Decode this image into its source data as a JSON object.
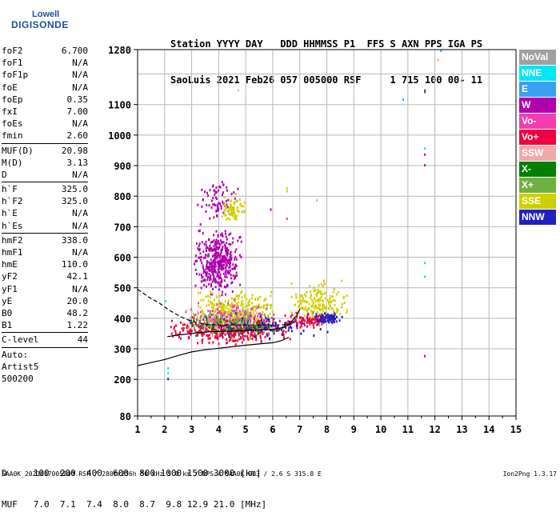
{
  "logo": {
    "line1": "Lowell",
    "line2": "DIGISONDE"
  },
  "header": {
    "row1": "Station YYYY DAY   DDD HHMMSS P1  FFS S AXN PPS IGA PS",
    "row2": "SaoLuis 2021 Feb26 057 005000 RSF     1 715 100 00- 11"
  },
  "params": {
    "group1": [
      {
        "name": "foF2",
        "value": "6.700"
      },
      {
        "name": "foF1",
        "value": "N/A"
      },
      {
        "name": "foF1p",
        "value": "N/A"
      },
      {
        "name": "foE",
        "value": "N/A"
      },
      {
        "name": "foEp",
        "value": "0.35"
      },
      {
        "name": "fxI",
        "value": "7.00"
      },
      {
        "name": "foEs",
        "value": "N/A"
      },
      {
        "name": "fmin",
        "value": "2.60"
      }
    ],
    "group2": [
      {
        "name": "MUF(D)",
        "value": "20.98"
      },
      {
        "name": "M(D)",
        "value": "3.13"
      },
      {
        "name": "D",
        "value": "N/A"
      }
    ],
    "group3": [
      {
        "name": "h`F",
        "value": "325.0"
      },
      {
        "name": "h`F2",
        "value": "325.0"
      },
      {
        "name": "h`E",
        "value": "N/A"
      },
      {
        "name": "h`Es",
        "value": "N/A"
      }
    ],
    "group4": [
      {
        "name": "hmF2",
        "value": "338.0"
      },
      {
        "name": "hmF1",
        "value": "N/A"
      },
      {
        "name": "hmE",
        "value": "110.0"
      },
      {
        "name": "yF2",
        "value": "42.1"
      },
      {
        "name": "yF1",
        "value": "N/A"
      },
      {
        "name": "yE",
        "value": "20.0"
      },
      {
        "name": "B0",
        "value": "48.2"
      },
      {
        "name": "B1",
        "value": "1.22"
      }
    ],
    "clevel": {
      "name": "C-level",
      "value": "44"
    },
    "auto": [
      "Auto:",
      "Artist5",
      "500200"
    ]
  },
  "legend": [
    {
      "label": "NoVal",
      "color": "#a0a0a0"
    },
    {
      "label": "NNE",
      "color": "#00e8f0"
    },
    {
      "label": "E",
      "color": "#3aa0f0"
    },
    {
      "label": "W",
      "color": "#b000b0"
    },
    {
      "label": "Vo-",
      "color": "#f040b0"
    },
    {
      "label": "Vo+",
      "color": "#f00040"
    },
    {
      "label": "SSW",
      "color": "#f0a8a8"
    },
    {
      "label": "X-",
      "color": "#008000"
    },
    {
      "label": "X+",
      "color": "#70b040"
    },
    {
      "label": "SSE",
      "color": "#d0d000"
    },
    {
      "label": "NNW",
      "color": "#2020c0"
    }
  ],
  "footer": {
    "d_row": "D     100  200  400  600  800 1000 1500 3000 [km]",
    "muf_row": "MUF   7.0  7.1  7.4  8.0  8.7  9.8 12.9 21.0 [MHz]"
  },
  "bottom_line": "SAA0K_2021057005000.RSF / 280fx256h 50 kHz 5.0 km / DPS-4 SAA0K 903 / 2.6 S 315.8 E",
  "version": "Ion2Png 1.3.17",
  "chart_data": {
    "type": "scatter",
    "xlim": [
      1,
      15
    ],
    "ylim": [
      80,
      1280
    ],
    "x_ticks": [
      "1",
      "2",
      "3",
      "4",
      "5",
      "6",
      "7",
      "8",
      "9",
      "10",
      "11",
      "12",
      "13",
      "14",
      "15"
    ],
    "y_ticks": [
      {
        "v": 80,
        "label": "80"
      },
      {
        "v": 200,
        "label": "200"
      },
      {
        "v": 300,
        "label": "300"
      },
      {
        "v": 400,
        "label": "400"
      },
      {
        "v": 500,
        "label": "500"
      },
      {
        "v": 600,
        "label": "600"
      },
      {
        "v": 700,
        "label": "700"
      },
      {
        "v": 800,
        "label": "800"
      },
      {
        "v": 900,
        "label": "900"
      },
      {
        "v": 1000,
        "label": "1000"
      },
      {
        "v": 1100,
        "label": "1100"
      },
      {
        "v": 1280,
        "label": "1280"
      }
    ],
    "grid": true,
    "clusters": [
      {
        "color": "#b000b0",
        "n": 420,
        "x": [
          3.0,
          4.9
        ],
        "y": [
          450,
          720
        ],
        "seed": 11
      },
      {
        "color": "#b000b0",
        "n": 70,
        "x": [
          3.1,
          4.8
        ],
        "y": [
          700,
          880
        ],
        "seed": 12
      },
      {
        "color": "#d0d000",
        "n": 380,
        "x": [
          3.0,
          6.2
        ],
        "y": [
          320,
          520
        ],
        "seed": 13
      },
      {
        "color": "#f00040",
        "n": 420,
        "x": [
          2.0,
          6.8
        ],
        "y": [
          310,
          420
        ],
        "seed": 14
      },
      {
        "color": "#f040b0",
        "n": 160,
        "x": [
          2.5,
          6.5
        ],
        "y": [
          330,
          470
        ],
        "seed": 15
      },
      {
        "color": "#008000",
        "n": 90,
        "x": [
          2.6,
          6.3
        ],
        "y": [
          330,
          420
        ],
        "seed": 16
      },
      {
        "color": "#2020c0",
        "n": 120,
        "x": [
          2.7,
          8.5
        ],
        "y": [
          330,
          430
        ],
        "seed": 17
      },
      {
        "color": "#70b040",
        "n": 80,
        "x": [
          2.6,
          6.0
        ],
        "y": [
          340,
          440
        ],
        "seed": 18
      },
      {
        "color": "#d0d000",
        "n": 170,
        "x": [
          6.5,
          8.8
        ],
        "y": [
          370,
          540
        ],
        "seed": 19
      },
      {
        "color": "#f00040",
        "n": 90,
        "x": [
          6.2,
          8.3
        ],
        "y": [
          360,
          430
        ],
        "seed": 20
      },
      {
        "color": "#2020c0",
        "n": 70,
        "x": [
          7.5,
          8.6
        ],
        "y": [
          380,
          430
        ],
        "seed": 21
      },
      {
        "color": "#d0d000",
        "n": 70,
        "x": [
          4.0,
          5.0
        ],
        "y": [
          700,
          820
        ],
        "seed": 22
      },
      {
        "color": "#f0a8a8",
        "n": 40,
        "x": [
          2.5,
          5.5
        ],
        "y": [
          320,
          460
        ],
        "seed": 23
      }
    ],
    "sparse_points": [
      {
        "x": 2.1,
        "y": 240,
        "color": "#00e8f0"
      },
      {
        "x": 2.1,
        "y": 225,
        "color": "#00e8f0"
      },
      {
        "x": 2.1,
        "y": 205,
        "color": "#2020c0"
      },
      {
        "x": 2.0,
        "y": 460,
        "color": "#00e8f0"
      },
      {
        "x": 10.8,
        "y": 1120,
        "color": "#3aa0f0"
      },
      {
        "x": 11.6,
        "y": 1150,
        "color": "#f00040"
      },
      {
        "x": 11.6,
        "y": 1145,
        "color": "#008000"
      },
      {
        "x": 11.6,
        "y": 960,
        "color": "#00e8f0"
      },
      {
        "x": 11.6,
        "y": 940,
        "color": "#b000b0"
      },
      {
        "x": 11.6,
        "y": 905,
        "color": "#b000b0"
      },
      {
        "x": 11.6,
        "y": 585,
        "color": "#00e8f0"
      },
      {
        "x": 11.6,
        "y": 540,
        "color": "#00e8f0"
      },
      {
        "x": 11.6,
        "y": 280,
        "color": "#b000b0"
      },
      {
        "x": 12.2,
        "y": 1280,
        "color": "#3aa0f0"
      },
      {
        "x": 12.1,
        "y": 1250,
        "color": "#f0a8a8"
      },
      {
        "x": 4.7,
        "y": 1150,
        "color": "#f0a8a8"
      },
      {
        "x": 6.5,
        "y": 830,
        "color": "#d0d000"
      },
      {
        "x": 6.5,
        "y": 820,
        "color": "#d0d000"
      },
      {
        "x": 5.9,
        "y": 760,
        "color": "#b000b0"
      },
      {
        "x": 6.5,
        "y": 730,
        "color": "#f040b0"
      },
      {
        "x": 7.6,
        "y": 790,
        "color": "#f0a8a8"
      }
    ],
    "curves": [
      {
        "name": "",
        "style": "solid",
        "points": [
          [
            1.0,
            245
          ],
          [
            1.5,
            255
          ],
          [
            2.0,
            265
          ],
          [
            2.5,
            278
          ],
          [
            3.0,
            290
          ],
          [
            3.5,
            297
          ],
          [
            4.0,
            302
          ],
          [
            4.5,
            307
          ],
          [
            5.0,
            312
          ],
          [
            5.5,
            316
          ],
          [
            6.0,
            320
          ],
          [
            6.3,
            326
          ],
          [
            6.6,
            338
          ]
        ]
      },
      {
        "name": "",
        "style": "solid",
        "points": [
          [
            2.1,
            340
          ],
          [
            2.5,
            345
          ],
          [
            3.0,
            350
          ],
          [
            3.5,
            355
          ],
          [
            4.0,
            357
          ],
          [
            4.5,
            358
          ],
          [
            5.0,
            360
          ],
          [
            5.5,
            362
          ],
          [
            6.0,
            364
          ],
          [
            6.4,
            370
          ],
          [
            6.7,
            390
          ],
          [
            6.9,
            410
          ],
          [
            7.0,
            430
          ]
        ]
      },
      {
        "name": "",
        "style": "dashed",
        "points": [
          [
            1.0,
            495
          ],
          [
            1.4,
            470
          ],
          [
            1.8,
            450
          ],
          [
            2.2,
            425
          ],
          [
            2.6,
            405
          ],
          [
            3.0,
            390
          ],
          [
            3.5,
            380
          ],
          [
            4.0,
            378
          ],
          [
            5.0,
            378
          ],
          [
            6.0,
            378
          ],
          [
            6.7,
            380
          ]
        ]
      }
    ]
  }
}
